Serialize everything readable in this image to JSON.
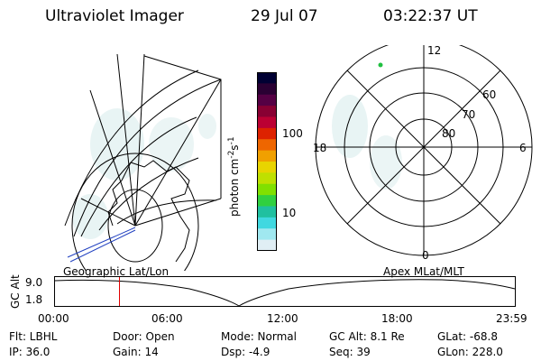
{
  "header": {
    "instrument": "Ultraviolet Imager",
    "date": "29 Jul 07",
    "time": "03:22:37 UT"
  },
  "colorbar": {
    "label": "photon cm-2s-1",
    "label_main": "photon cm",
    "label_sup1": "-2",
    "label_s": "s",
    "label_sup2": "-1",
    "ticks": [
      "100",
      "10"
    ],
    "colors": [
      "#000033",
      "#2a0033",
      "#550044",
      "#880033",
      "#bb0033",
      "#dd2200",
      "#ee6600",
      "#f0a000",
      "#e8d400",
      "#bfe000",
      "#80e000",
      "#30d040",
      "#20c0a0",
      "#40d8e0",
      "#a0e8f0",
      "#e0eef4"
    ]
  },
  "geo_panel": {
    "label": "Geographic Lat/Lon"
  },
  "polar_panel": {
    "label": "Apex  MLat/MLT",
    "mlt_labels": {
      "top": "12",
      "left": "18",
      "right": "6",
      "bottom": "0"
    },
    "lat_labels": [
      "60",
      "70",
      "80"
    ]
  },
  "timeline": {
    "ylabel": "GC Alt",
    "y_max": "9.0",
    "y_min": "1.8",
    "x_ticks": [
      "00:00",
      "06:00",
      "12:00",
      "18:00",
      "23:59"
    ],
    "marker_time": "03:22",
    "marker_color": "#e00000"
  },
  "info": {
    "filter": "Flt: LBHL",
    "ip": "IP: 36.0",
    "door": "Door: Open",
    "gain": "Gain: 14",
    "mode": "Mode: Normal",
    "dsp": "Dsp:    -4.9",
    "gc_alt": "GC Alt: 8.1 Re",
    "seq": "Seq: 39",
    "glat": "GLat: -68.8",
    "glon": "GLon: 228.0"
  }
}
